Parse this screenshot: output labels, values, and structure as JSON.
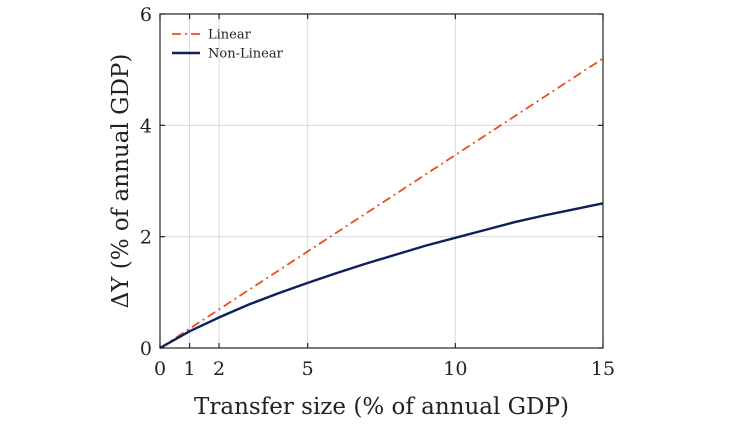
{
  "chart_data": {
    "type": "line",
    "xlabel": "Transfer size (% of annual GDP)",
    "ylabel": "ΔY (% of annual GDP)",
    "xlim": [
      0,
      15
    ],
    "ylim": [
      0,
      6
    ],
    "xticks": [
      0,
      1,
      2,
      5,
      10,
      15
    ],
    "yticks": [
      0,
      2,
      4,
      6
    ],
    "grid": true,
    "legend_position": "top-left",
    "series": [
      {
        "name": "Linear",
        "color": "#e8501c",
        "style": "dash-dot",
        "x": [
          0,
          15
        ],
        "y": [
          0,
          5.2
        ]
      },
      {
        "name": "Non-Linear",
        "color": "#0d1f5c",
        "style": "solid",
        "x": [
          0,
          1,
          2,
          3,
          4,
          5,
          6,
          7,
          8,
          9,
          10,
          11,
          12,
          13,
          14,
          15
        ],
        "y": [
          0,
          0.3,
          0.55,
          0.78,
          0.98,
          1.17,
          1.35,
          1.52,
          1.68,
          1.84,
          1.98,
          2.12,
          2.26,
          2.38,
          2.49,
          2.6
        ]
      }
    ]
  }
}
